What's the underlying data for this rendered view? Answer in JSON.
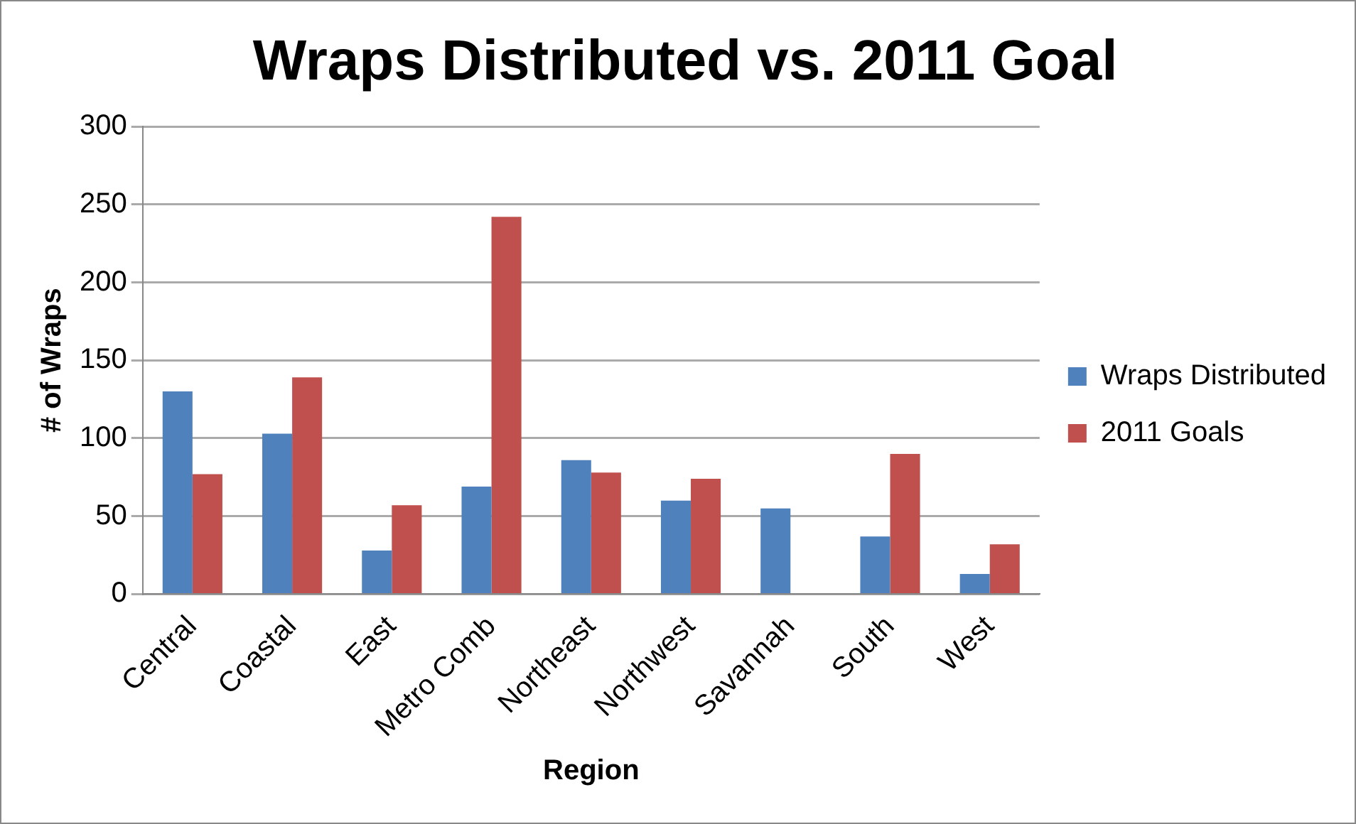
{
  "chart_data": {
    "type": "bar",
    "title": "Wraps Distributed vs. 2011 Goal",
    "xlabel": "Region",
    "ylabel": "# of Wraps",
    "categories": [
      "Central",
      "Coastal",
      "East",
      "Metro Comb",
      "Northeast",
      "Northwest",
      "Savannah",
      "South",
      "West"
    ],
    "series": [
      {
        "name": "Wraps Distributed",
        "color": "#4f81bd",
        "values": [
          130,
          103,
          28,
          69,
          86,
          60,
          55,
          37,
          13
        ]
      },
      {
        "name": "2011 Goals",
        "color": "#c0504d",
        "values": [
          77,
          139,
          57,
          242,
          78,
          74,
          null,
          90,
          32
        ]
      }
    ],
    "ylim": [
      0,
      300
    ],
    "yticks": [
      0,
      50,
      100,
      150,
      200,
      250,
      300
    ],
    "grid": "y",
    "legend": "right"
  }
}
